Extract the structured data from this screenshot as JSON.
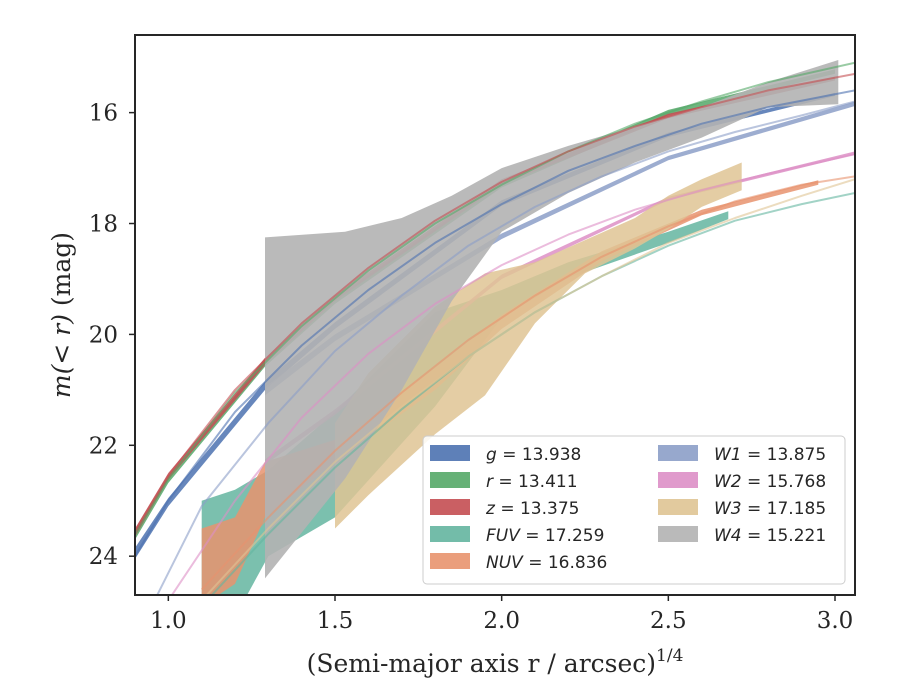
{
  "chart_data": {
    "type": "line",
    "xlabel": "(Semi-major axis r / arcsec)",
    "xlabel_power": "1/4",
    "ylabel_main": "m(< r)",
    "ylabel_unit": " (mag)",
    "xlim": [
      0.9,
      3.06
    ],
    "ylim": [
      24.7,
      14.6
    ],
    "y_inverted": true,
    "xticks": [
      1.0,
      1.5,
      2.0,
      2.5,
      3.0
    ],
    "xtick_labels": [
      "1.0",
      "1.5",
      "2.0",
      "2.5",
      "3.0"
    ],
    "yticks": [
      16,
      18,
      20,
      22,
      24
    ],
    "ytick_labels": [
      "16",
      "18",
      "20",
      "22",
      "24"
    ],
    "grid": false,
    "legend_placement": "lower-right",
    "series": [
      {
        "name": "g = 13.938",
        "legend_symbol": "g",
        "legend_value": "13.938",
        "color": "#4c72b0",
        "model_curve": [
          [
            0.9,
            24.0
          ],
          [
            1.0,
            23.0
          ],
          [
            1.2,
            21.4
          ],
          [
            1.4,
            20.2
          ],
          [
            1.6,
            19.2
          ],
          [
            1.8,
            18.35
          ],
          [
            2.0,
            17.65
          ],
          [
            2.2,
            17.05
          ],
          [
            2.4,
            16.6
          ],
          [
            2.6,
            16.2
          ],
          [
            2.8,
            15.9
          ],
          [
            3.06,
            15.6
          ]
        ],
        "data_band": [
          [
            0.9,
            23.85,
            24.05
          ],
          [
            1.0,
            22.95,
            23.1
          ],
          [
            1.29,
            20.85,
            21.0
          ],
          [
            1.5,
            19.78,
            19.9
          ],
          [
            2.0,
            17.58,
            17.68
          ],
          [
            2.5,
            16.36,
            16.44
          ],
          [
            3.0,
            15.64,
            15.7
          ]
        ]
      },
      {
        "name": "r = 13.411",
        "legend_symbol": "r",
        "legend_value": "13.411",
        "color": "#55a868",
        "model_curve": [
          [
            0.9,
            23.6
          ],
          [
            1.0,
            22.6
          ],
          [
            1.2,
            21.05
          ],
          [
            1.4,
            19.85
          ],
          [
            1.6,
            18.85
          ],
          [
            1.8,
            18.0
          ],
          [
            2.0,
            17.3
          ],
          [
            2.2,
            16.7
          ],
          [
            2.4,
            16.2
          ],
          [
            2.6,
            15.8
          ],
          [
            2.8,
            15.45
          ],
          [
            3.06,
            15.1
          ]
        ],
        "data_band": [
          [
            0.9,
            23.55,
            23.7
          ],
          [
            1.0,
            22.55,
            22.68
          ],
          [
            1.29,
            20.45,
            20.58
          ],
          [
            1.5,
            19.35,
            19.45
          ],
          [
            2.0,
            17.25,
            17.35
          ],
          [
            2.5,
            15.95,
            16.05
          ],
          [
            3.0,
            15.22,
            15.3
          ]
        ]
      },
      {
        "name": "z = 13.375",
        "legend_symbol": "z",
        "legend_value": "13.375",
        "color": "#c44e52",
        "model_curve": [
          [
            0.9,
            23.55
          ],
          [
            1.0,
            22.55
          ],
          [
            1.2,
            21.0
          ],
          [
            1.4,
            19.8
          ],
          [
            1.6,
            18.8
          ],
          [
            1.8,
            17.95
          ],
          [
            2.0,
            17.25
          ],
          [
            2.2,
            16.7
          ],
          [
            2.4,
            16.25
          ],
          [
            2.6,
            15.9
          ],
          [
            2.8,
            15.6
          ],
          [
            3.06,
            15.3
          ]
        ],
        "data_band": [
          [
            0.9,
            23.5,
            23.65
          ],
          [
            1.0,
            22.5,
            22.62
          ],
          [
            1.29,
            20.42,
            20.55
          ],
          [
            1.5,
            19.3,
            19.4
          ],
          [
            2.0,
            17.2,
            17.3
          ],
          [
            2.5,
            16.02,
            16.1
          ],
          [
            3.0,
            15.35,
            15.42
          ]
        ]
      },
      {
        "name": "FUV = 17.259",
        "legend_symbol": "FUV",
        "legend_value": "17.259",
        "color": "#64b5a0",
        "model_curve": [
          [
            1.1,
            24.9
          ],
          [
            1.3,
            23.6
          ],
          [
            1.5,
            22.4
          ],
          [
            1.7,
            21.35
          ],
          [
            1.9,
            20.4
          ],
          [
            2.1,
            19.6
          ],
          [
            2.3,
            18.95
          ],
          [
            2.5,
            18.4
          ],
          [
            2.7,
            17.95
          ],
          [
            2.9,
            17.65
          ],
          [
            3.06,
            17.45
          ]
        ],
        "data_band": [
          [
            1.1,
            23.0,
            24.9
          ],
          [
            1.2,
            22.8,
            25.1
          ],
          [
            1.3,
            22.45,
            24.0
          ],
          [
            1.5,
            21.4,
            23.3
          ],
          [
            1.8,
            19.6,
            21.3
          ],
          [
            2.0,
            19.2,
            19.7
          ],
          [
            2.2,
            18.7,
            18.98
          ],
          [
            2.5,
            18.15,
            18.35
          ],
          [
            2.68,
            17.78,
            17.92
          ]
        ]
      },
      {
        "name": "NUV = 16.836",
        "legend_symbol": "NUV",
        "legend_value": "16.836",
        "color": "#e8936e",
        "model_curve": [
          [
            1.1,
            24.6
          ],
          [
            1.3,
            23.3
          ],
          [
            1.5,
            22.1
          ],
          [
            1.7,
            21.05
          ],
          [
            1.9,
            20.1
          ],
          [
            2.1,
            19.3
          ],
          [
            2.3,
            18.6
          ],
          [
            2.5,
            18.05
          ],
          [
            2.7,
            17.6
          ],
          [
            2.9,
            17.3
          ],
          [
            3.06,
            17.15
          ]
        ],
        "data_band": [
          [
            1.1,
            23.5,
            24.9
          ],
          [
            1.2,
            23.3,
            24.5
          ],
          [
            1.29,
            22.3,
            23.3
          ],
          [
            1.5,
            21.9,
            22.3
          ],
          [
            1.8,
            20.6,
            21.0
          ],
          [
            2.0,
            19.65,
            19.9
          ],
          [
            2.3,
            18.5,
            18.68
          ],
          [
            2.6,
            17.75,
            17.85
          ],
          [
            2.95,
            17.22,
            17.3
          ]
        ]
      },
      {
        "name": "W1 = 13.875",
        "legend_symbol": "W1",
        "legend_value": "13.875",
        "color": "#8c9fc8",
        "model_curve": [
          [
            0.95,
            24.9
          ],
          [
            1.1,
            23.1
          ],
          [
            1.3,
            21.6
          ],
          [
            1.5,
            20.3
          ],
          [
            1.7,
            19.3
          ],
          [
            1.9,
            18.4
          ],
          [
            2.1,
            17.7
          ],
          [
            2.3,
            17.15
          ],
          [
            2.5,
            16.7
          ],
          [
            2.7,
            16.35
          ],
          [
            2.9,
            16.05
          ],
          [
            3.06,
            15.8
          ]
        ],
        "data_band": [
          [
            1.29,
            20.95,
            21.1
          ],
          [
            1.5,
            20.0,
            20.12
          ],
          [
            2.0,
            18.18,
            18.28
          ],
          [
            2.5,
            16.78,
            16.86
          ],
          [
            3.06,
            15.8,
            15.88
          ]
        ]
      },
      {
        "name": "W2 = 15.768",
        "legend_symbol": "W2",
        "legend_value": "15.768",
        "color": "#dd8fc6",
        "model_curve": [
          [
            1.0,
            24.8
          ],
          [
            1.2,
            23.0
          ],
          [
            1.4,
            21.5
          ],
          [
            1.6,
            20.35
          ],
          [
            1.8,
            19.45
          ],
          [
            2.0,
            18.75
          ],
          [
            2.2,
            18.2
          ],
          [
            2.4,
            17.75
          ],
          [
            2.6,
            17.4
          ],
          [
            2.8,
            17.1
          ],
          [
            3.06,
            16.75
          ]
        ],
        "data_band": [
          [
            1.29,
            22.25,
            22.35
          ],
          [
            1.5,
            21.35,
            21.45
          ],
          [
            2.0,
            18.92,
            19.0
          ],
          [
            2.5,
            17.52,
            17.58
          ],
          [
            3.06,
            16.7,
            16.76
          ]
        ]
      },
      {
        "name": "W3 = 17.185",
        "legend_symbol": "W3",
        "legend_value": "17.185",
        "color": "#dfc494",
        "model_curve": [
          [
            1.1,
            24.8
          ],
          [
            1.3,
            23.5
          ],
          [
            1.5,
            22.3
          ],
          [
            1.7,
            21.3
          ],
          [
            1.9,
            20.4
          ],
          [
            2.1,
            19.6
          ],
          [
            2.3,
            18.95
          ],
          [
            2.5,
            18.35
          ],
          [
            2.7,
            17.9
          ],
          [
            2.9,
            17.5
          ],
          [
            3.06,
            17.2
          ]
        ],
        "data_band": [
          [
            1.5,
            21.6,
            23.5
          ],
          [
            1.6,
            20.7,
            22.9
          ],
          [
            1.8,
            19.5,
            21.8
          ],
          [
            1.95,
            18.9,
            21.1
          ],
          [
            2.1,
            18.7,
            19.8
          ],
          [
            2.25,
            18.3,
            18.9
          ],
          [
            2.4,
            17.9,
            18.45
          ],
          [
            2.5,
            17.5,
            18.1
          ],
          [
            2.6,
            17.2,
            17.7
          ],
          [
            2.72,
            16.9,
            17.4
          ]
        ]
      },
      {
        "name": "W4 = 15.221",
        "legend_symbol": "W4",
        "legend_value": "15.221",
        "color": "#b2b2b2",
        "model_curve": [],
        "data_band": [
          [
            1.29,
            18.25,
            24.4
          ],
          [
            1.53,
            18.15,
            22.6
          ],
          [
            1.7,
            17.9,
            21.0
          ],
          [
            1.85,
            17.5,
            19.4
          ],
          [
            2.0,
            17.0,
            18.15
          ],
          [
            2.2,
            16.6,
            17.45
          ],
          [
            2.4,
            16.25,
            16.9
          ],
          [
            2.6,
            15.9,
            16.45
          ],
          [
            2.8,
            15.45,
            15.9
          ],
          [
            3.01,
            15.05,
            15.85
          ]
        ]
      }
    ]
  }
}
